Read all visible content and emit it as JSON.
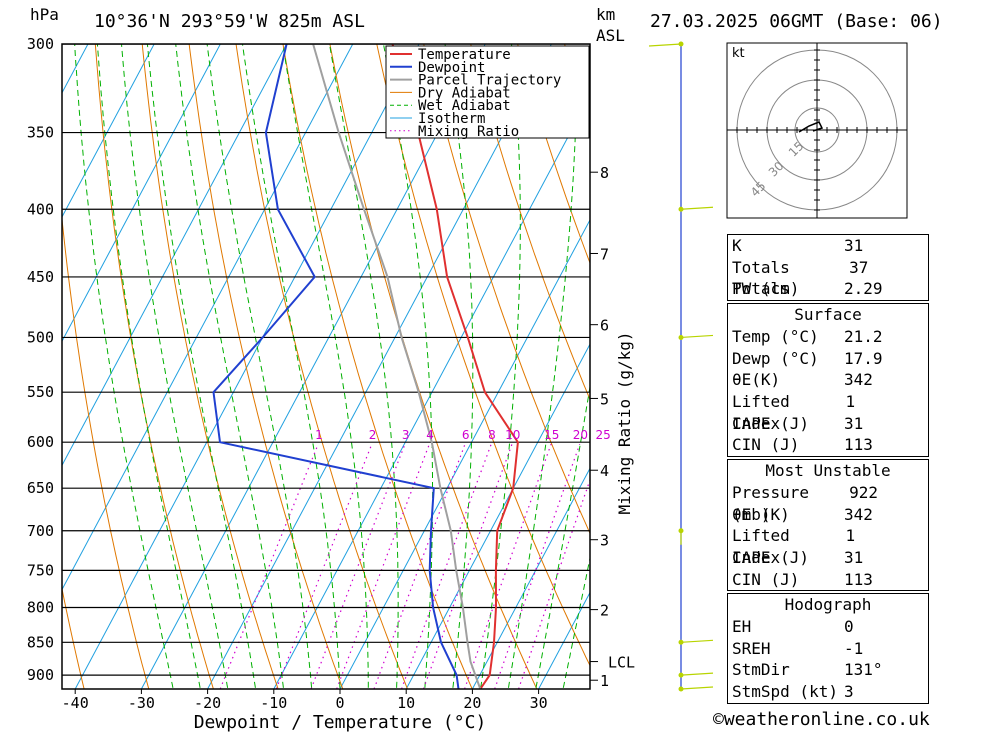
{
  "header": {
    "unit_hpa": "hPa",
    "location": "10°36'N 293°59'W 825m ASL",
    "unit_km": "km",
    "unit_asl": "ASL",
    "datetime": "27.03.2025 06GMT (Base: 06)"
  },
  "chart_data": {
    "type": "line",
    "title": "",
    "xlabel": "Dewpoint / Temperature (°C)",
    "ylabel": "hPa",
    "y2label": "Mixing Ratio (g/kg)",
    "pressure_levels": [
      300,
      350,
      400,
      450,
      500,
      550,
      600,
      650,
      700,
      750,
      800,
      850,
      900
    ],
    "x_ticks": [
      -40,
      -30,
      -20,
      -10,
      0,
      10,
      20,
      30
    ],
    "km_ticks": [
      {
        "label": "8",
        "p": 375
      },
      {
        "label": "7",
        "p": 432
      },
      {
        "label": "6",
        "p": 489
      },
      {
        "label": "5",
        "p": 556
      },
      {
        "label": "4",
        "p": 630
      },
      {
        "label": "3",
        "p": 711
      },
      {
        "label": "2",
        "p": 803
      },
      {
        "label": "1",
        "p": 908
      }
    ],
    "lcl_label": "LCL",
    "lcl_p": 879,
    "mixing_ratio_labels": [
      "1",
      "2",
      "3",
      "4",
      "6",
      "8",
      "10",
      "15",
      "20",
      "25"
    ],
    "legend": [
      "Temperature",
      "Dewpoint",
      "Parcel Trajectory",
      "Dry Adiabat",
      "Wet Adiabat",
      "Isotherm",
      "Mixing Ratio"
    ],
    "series": [
      {
        "name": "Temperature",
        "color": "#e03030",
        "points": [
          [
            922,
            21.2
          ],
          [
            900,
            21.5
          ],
          [
            850,
            19.5
          ],
          [
            800,
            17
          ],
          [
            750,
            14
          ],
          [
            700,
            11
          ],
          [
            650,
            10
          ],
          [
            600,
            7
          ],
          [
            550,
            -2
          ],
          [
            500,
            -9
          ],
          [
            450,
            -17
          ],
          [
            400,
            -24
          ],
          [
            350,
            -33
          ],
          [
            300,
            -44
          ]
        ]
      },
      {
        "name": "Dewpoint",
        "color": "#2040d0",
        "points": [
          [
            922,
            17.9
          ],
          [
            900,
            16.5
          ],
          [
            850,
            11.5
          ],
          [
            800,
            7.5
          ],
          [
            750,
            4
          ],
          [
            700,
            1
          ],
          [
            650,
            -2
          ],
          [
            600,
            -38
          ],
          [
            550,
            -43
          ],
          [
            500,
            -40
          ],
          [
            450,
            -37
          ],
          [
            400,
            -48
          ],
          [
            350,
            -56
          ],
          [
            300,
            -60
          ]
        ]
      },
      {
        "name": "Parcel Trajectory",
        "color": "#a0a0a0",
        "points": [
          [
            922,
            21.2
          ],
          [
            879,
            17.5
          ],
          [
            850,
            15.5
          ],
          [
            800,
            12
          ],
          [
            750,
            8
          ],
          [
            700,
            4
          ],
          [
            650,
            -1
          ],
          [
            600,
            -6
          ],
          [
            550,
            -12
          ],
          [
            500,
            -19
          ],
          [
            450,
            -26
          ],
          [
            400,
            -35
          ],
          [
            350,
            -45
          ],
          [
            300,
            -56
          ]
        ]
      }
    ]
  },
  "info_table": {
    "indices": [
      {
        "label": "K",
        "value": "31"
      },
      {
        "label": "Totals Totals",
        "value": "37"
      },
      {
        "label": "PW (cm)",
        "value": "2.29"
      }
    ],
    "surface_title": "Surface",
    "surface": [
      {
        "label": "Temp (°C)",
        "value": "21.2"
      },
      {
        "label": "Dewp (°C)",
        "value": "17.9"
      },
      {
        "label": "θE(K)",
        "value": "342"
      },
      {
        "label": "Lifted Index",
        "value": "1"
      },
      {
        "label": "CAPE (J)",
        "value": "31"
      },
      {
        "label": "CIN (J)",
        "value": "113"
      }
    ],
    "most_unstable_title": "Most Unstable",
    "most_unstable": [
      {
        "label": "Pressure (mb)",
        "value": "922"
      },
      {
        "label": "θE (K)",
        "value": "342"
      },
      {
        "label": "Lifted Index",
        "value": "1"
      },
      {
        "label": "CAPE (J)",
        "value": "31"
      },
      {
        "label": "CIN (J)",
        "value": "113"
      }
    ],
    "hodograph_title": "Hodograph",
    "hodograph": [
      {
        "label": "EH",
        "value": "0"
      },
      {
        "label": "SREH",
        "value": "-1"
      },
      {
        "label": "StmDir",
        "value": "131°"
      },
      {
        "label": "StmSpd (kt)",
        "value": "3"
      }
    ]
  },
  "hodograph_plot": {
    "unit": "kt",
    "ring_labels": [
      "15",
      "30",
      "45"
    ]
  },
  "footer": {
    "copyright": "©weatheronline.co.uk"
  },
  "colors": {
    "temperature": "#e03030",
    "dewpoint": "#2040d0",
    "parcel": "#a0a0a0",
    "dry_adiabat": "#e07800",
    "wet_adiabat": "#00b000",
    "isotherm": "#20a0e0",
    "mixing_ratio": "#d000d0",
    "wind_barb": "#b8d400"
  }
}
